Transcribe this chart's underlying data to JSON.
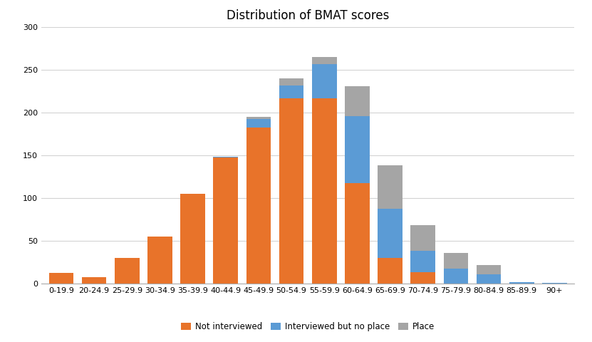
{
  "categories": [
    "0-19.9",
    "20-24.9",
    "25-29.9",
    "30-34.9",
    "35-39.9",
    "40-44.9",
    "45-49.9",
    "50-54.9",
    "55-59.9",
    "60-64.9",
    "65-69.9",
    "70-74.9",
    "75-79.9",
    "80-84.9",
    "85-89.9",
    "90+"
  ],
  "not_interviewed": [
    13,
    8,
    30,
    55,
    105,
    148,
    183,
    217,
    217,
    118,
    30,
    14,
    0,
    0,
    0,
    0
  ],
  "interviewed_no_place": [
    0,
    0,
    0,
    0,
    0,
    1,
    10,
    15,
    40,
    78,
    58,
    25,
    18,
    11,
    2,
    1
  ],
  "place": [
    0,
    0,
    0,
    0,
    0,
    0,
    2,
    8,
    8,
    35,
    51,
    30,
    18,
    11,
    0,
    0
  ],
  "color_not_interviewed": "#E8732A",
  "color_interviewed": "#5B9BD5",
  "color_place": "#A5A5A5",
  "title": "Distribution of BMAT scores",
  "ylim": [
    0,
    300
  ],
  "yticks": [
    0,
    50,
    100,
    150,
    200,
    250,
    300
  ],
  "legend_labels": [
    "Not interviewed",
    "Interviewed but no place",
    "Place"
  ],
  "background_color": "#FFFFFF",
  "bar_width": 0.75,
  "title_fontsize": 12,
  "tick_fontsize": 8,
  "legend_fontsize": 8.5
}
